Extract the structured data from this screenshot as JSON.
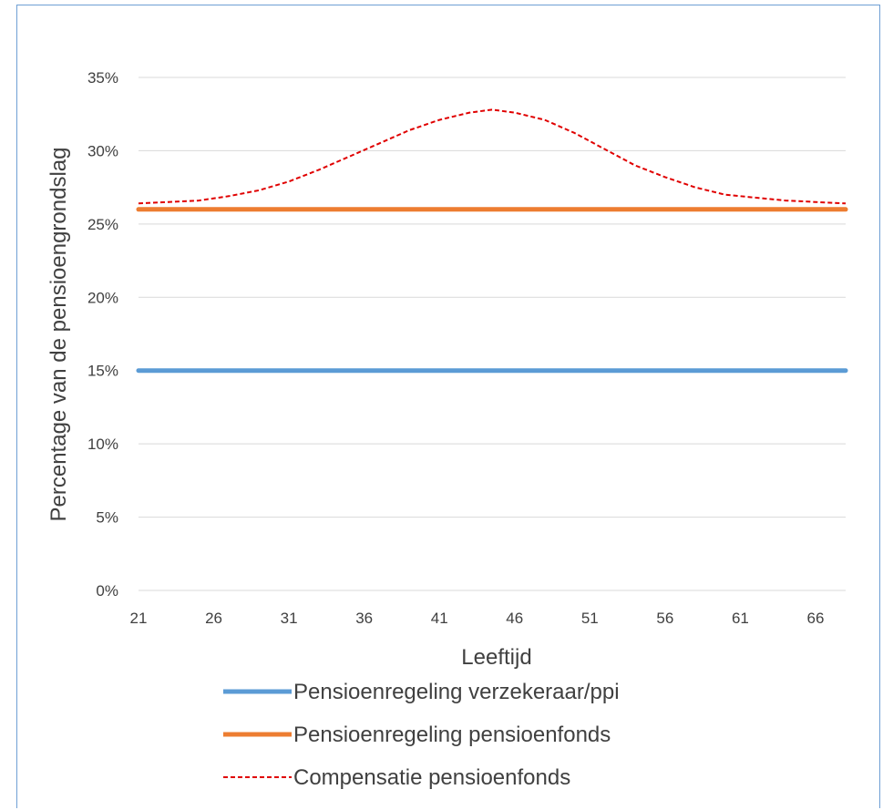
{
  "chart_data": {
    "type": "line",
    "xlabel": "Leeftijd",
    "ylabel": "Percentage van de pensioengrondslag",
    "x_ticks": [
      "21",
      "26",
      "31",
      "36",
      "41",
      "46",
      "51",
      "56",
      "61",
      "66"
    ],
    "y_ticks": [
      "0%",
      "5%",
      "10%",
      "15%",
      "20%",
      "25%",
      "30%",
      "35%"
    ],
    "xlim": [
      21,
      68
    ],
    "ylim": [
      0,
      35
    ],
    "grid": true,
    "legend_position": "bottom",
    "series": [
      {
        "name": "Pensioenregeling verzekeraar/ppi",
        "color": "#5b9bd5",
        "style": "solid",
        "x": [
          21,
          68
        ],
        "y": [
          15,
          15
        ]
      },
      {
        "name": "Pensioenregeling pensioenfonds",
        "color": "#ed7d31",
        "style": "solid",
        "x": [
          21,
          68
        ],
        "y": [
          26,
          26
        ]
      },
      {
        "name": "Compensatie pensioenfonds",
        "color": "#e00000",
        "style": "dashed",
        "x": [
          21,
          23,
          25,
          27,
          29,
          31,
          33,
          35,
          37,
          39,
          41,
          43,
          44.5,
          46,
          48,
          50,
          52,
          54,
          56,
          58,
          60,
          62,
          64,
          66,
          68
        ],
        "y": [
          26.4,
          26.5,
          26.6,
          26.9,
          27.3,
          27.9,
          28.7,
          29.6,
          30.5,
          31.4,
          32.1,
          32.6,
          32.8,
          32.6,
          32.1,
          31.2,
          30.1,
          29.0,
          28.2,
          27.5,
          27.0,
          26.8,
          26.6,
          26.5,
          26.4
        ]
      }
    ]
  }
}
